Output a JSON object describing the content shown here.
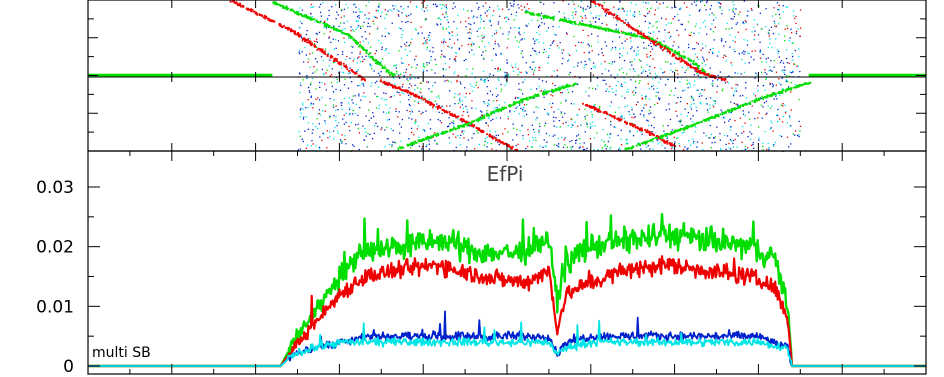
{
  "chart_data": [
    {
      "panel": "waterfall",
      "type": "scatter",
      "title": "",
      "xlim": [
        0,
        1000
      ],
      "ylim": [
        -1,
        1
      ],
      "grid": false,
      "xticks_major": [
        0,
        100,
        200,
        300,
        400,
        500,
        600,
        700,
        800,
        900,
        1000
      ],
      "series": [
        {
          "color": "#00dd00",
          "segments": [
            [
              [
                0,
                0
              ],
              [
                220,
                0
              ]
            ],
            [
              [
                220,
                0.98
              ],
              [
                310,
                0.55
              ],
              [
                345,
                0.18
              ],
              [
                365,
                0
              ]
            ],
            [
              [
                520,
                0.85
              ],
              [
                670,
                0.5
              ],
              [
                720,
                0.2
              ],
              [
                740,
                0.01
              ]
            ],
            [
              [
                860,
                0
              ],
              [
                1000,
                0
              ]
            ]
          ]
        },
        {
          "color": "#ee0000",
          "segments": [
            [
              [
                170,
                1.0
              ],
              [
                240,
                0.62
              ],
              [
                330,
                -0.05
              ]
            ],
            [
              [
                600,
                1.0
              ],
              [
                730,
                0.05
              ],
              [
                760,
                -0.05
              ]
            ],
            [
              [
                345,
                -0.05
              ],
              [
                380,
                -0.2
              ],
              [
                450,
                -0.6
              ],
              [
                510,
                -0.98
              ]
            ],
            [
              [
                590,
                -0.36
              ],
              [
                660,
                -0.7
              ],
              [
                700,
                -0.93
              ]
            ]
          ]
        },
        {
          "color": "#00dd00",
          "segments": [
            [
              [
                370,
                -0.95
              ],
              [
                450,
                -0.64
              ],
              [
                520,
                -0.3
              ],
              [
                580,
                -0.1
              ]
            ],
            [
              [
                640,
                -0.97
              ],
              [
                720,
                -0.65
              ],
              [
                800,
                -0.3
              ],
              [
                860,
                -0.08
              ]
            ]
          ]
        }
      ],
      "noise_colors": [
        "#0022cc",
        "#00e5e5",
        "#ee0000",
        "#00dd00"
      ]
    },
    {
      "panel": "efficiency",
      "type": "line",
      "title": "EfPi",
      "xlabel": "",
      "ylabel": "",
      "xlim": [
        0,
        1000
      ],
      "ylim": [
        0,
        0.035
      ],
      "yticks": [
        0,
        0.01,
        0.02,
        0.03
      ],
      "ytick_labels": [
        "0",
        "0.01",
        "0.02",
        "0.03"
      ],
      "xticks_major": [
        0,
        100,
        200,
        300,
        400,
        500,
        600,
        700,
        800,
        900,
        1000
      ],
      "annotation": "multi SB",
      "grid": false,
      "series": [
        {
          "color": "#00dd00",
          "x": [
            0,
            230,
            245,
            270,
            300,
            330,
            370,
            420,
            470,
            520,
            550,
            560,
            570,
            585,
            600,
            640,
            690,
            740,
            790,
            820,
            835,
            840,
            860,
            1000
          ],
          "y": [
            0,
            0,
            0.004,
            0.009,
            0.015,
            0.019,
            0.02,
            0.021,
            0.019,
            0.019,
            0.021,
            0.011,
            0.017,
            0.019,
            0.02,
            0.021,
            0.022,
            0.021,
            0.02,
            0.018,
            0.01,
            0,
            0,
            0
          ]
        },
        {
          "color": "#ee0000",
          "x": [
            0,
            230,
            245,
            270,
            300,
            330,
            370,
            420,
            470,
            520,
            550,
            560,
            570,
            585,
            600,
            640,
            690,
            740,
            790,
            820,
            835,
            840,
            860,
            1000
          ],
          "y": [
            0,
            0,
            0.003,
            0.007,
            0.012,
            0.015,
            0.016,
            0.017,
            0.015,
            0.014,
            0.016,
            0.006,
            0.012,
            0.013,
            0.014,
            0.016,
            0.017,
            0.016,
            0.015,
            0.013,
            0.008,
            0,
            0,
            0
          ]
        },
        {
          "color": "#0022cc",
          "x": [
            0,
            230,
            245,
            270,
            300,
            330,
            400,
            500,
            550,
            560,
            570,
            600,
            700,
            800,
            835,
            840,
            860,
            1000
          ],
          "y": [
            0,
            0,
            0.002,
            0.003,
            0.004,
            0.005,
            0.005,
            0.005,
            0.005,
            0.002,
            0.004,
            0.005,
            0.005,
            0.005,
            0.003,
            0,
            0,
            0
          ]
        },
        {
          "color": "#00e5e5",
          "x": [
            0,
            230,
            245,
            270,
            300,
            330,
            400,
            500,
            550,
            560,
            570,
            600,
            700,
            800,
            835,
            840,
            860,
            1000
          ],
          "y": [
            0,
            0,
            0.002,
            0.003,
            0.004,
            0.004,
            0.004,
            0.004,
            0.004,
            0.002,
            0.003,
            0.004,
            0.004,
            0.004,
            0.003,
            0,
            0,
            0
          ]
        }
      ]
    }
  ]
}
